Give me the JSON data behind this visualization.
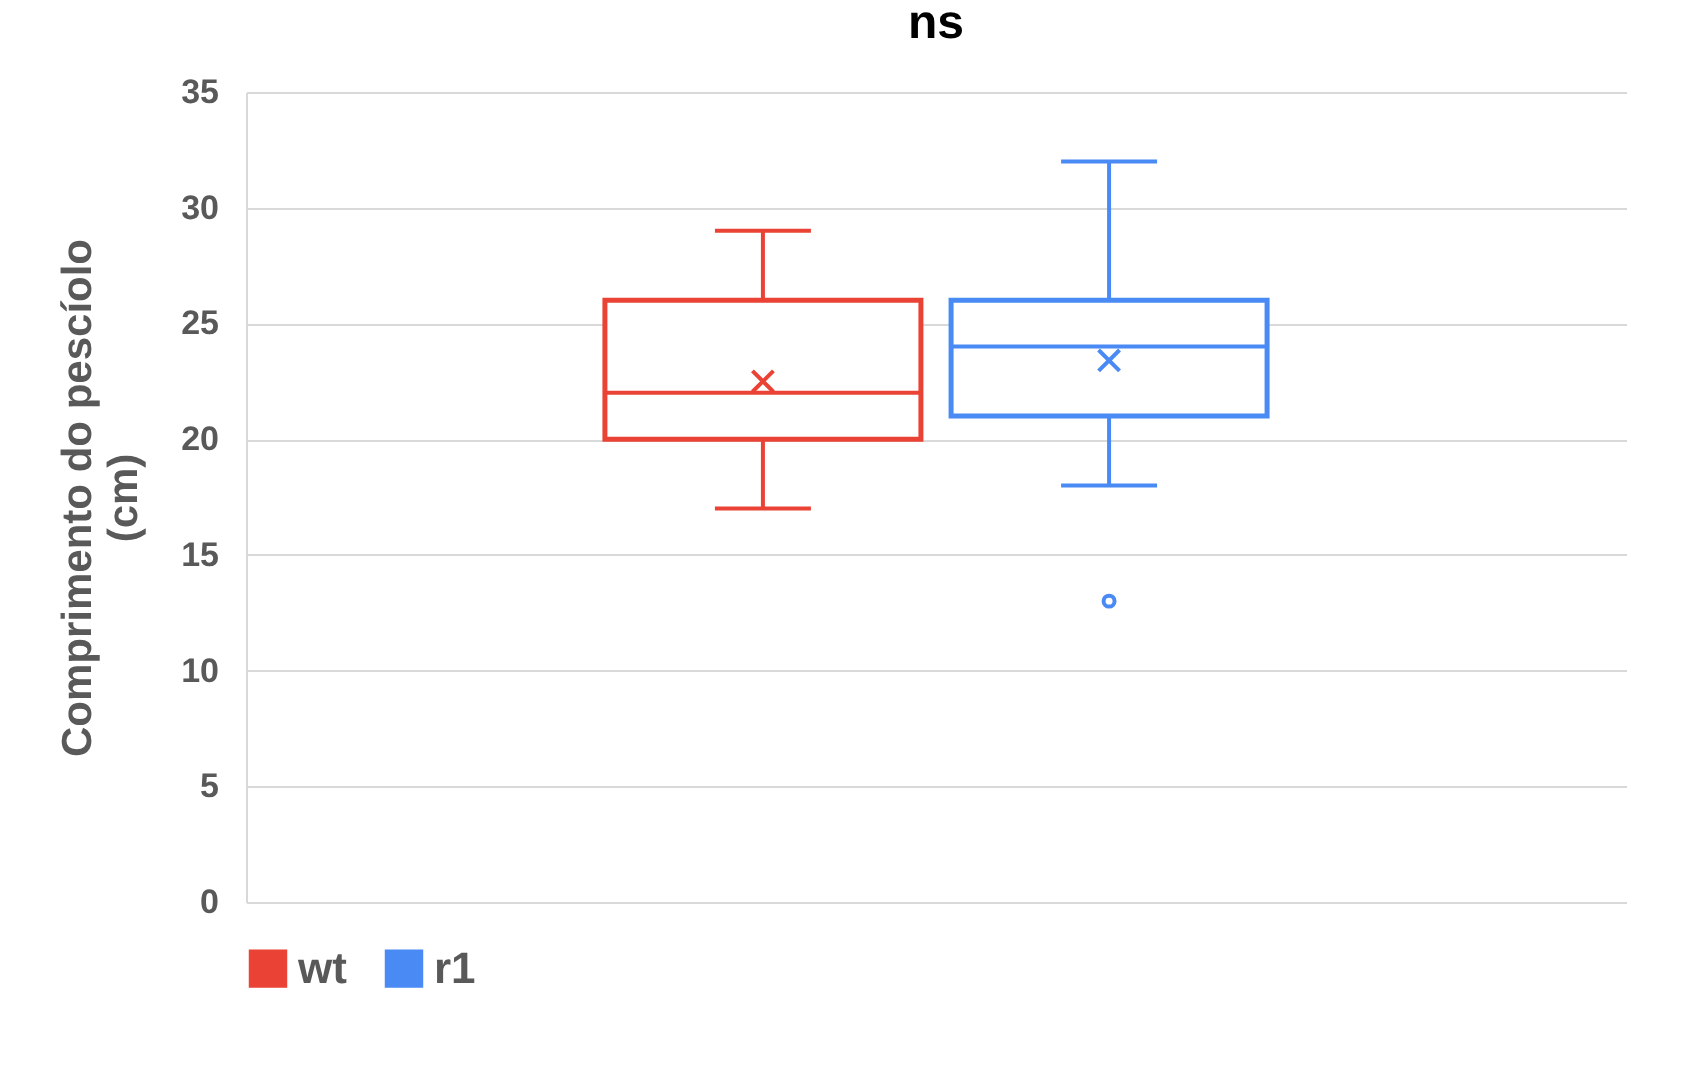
{
  "chart_data": {
    "type": "box",
    "ylabel": "Comprimento do pescíolo (cm)",
    "categories": [
      null
    ],
    "series": [
      {
        "name": "wt",
        "color": "#ea4335",
        "boxes": [
          {
            "low": 17,
            "q1": 20,
            "median": 22,
            "q3": 26,
            "high": 29,
            "mean": 22.5
          }
        ]
      },
      {
        "name": "r1",
        "color": "#4a8af4",
        "boxes": [
          {
            "low": 18,
            "q1": 21,
            "median": 24,
            "q3": 26,
            "high": 32,
            "mean": 23.4,
            "outliers": [
              13
            ]
          }
        ]
      }
    ],
    "ylim": [
      0,
      35
    ],
    "yticks": [
      0,
      5,
      10,
      15,
      20,
      25,
      30,
      35
    ],
    "grid": "y",
    "legend": "bottom",
    "tick_labels": "y",
    "marker": "cross",
    "annotations": [
      "ns"
    ]
  }
}
